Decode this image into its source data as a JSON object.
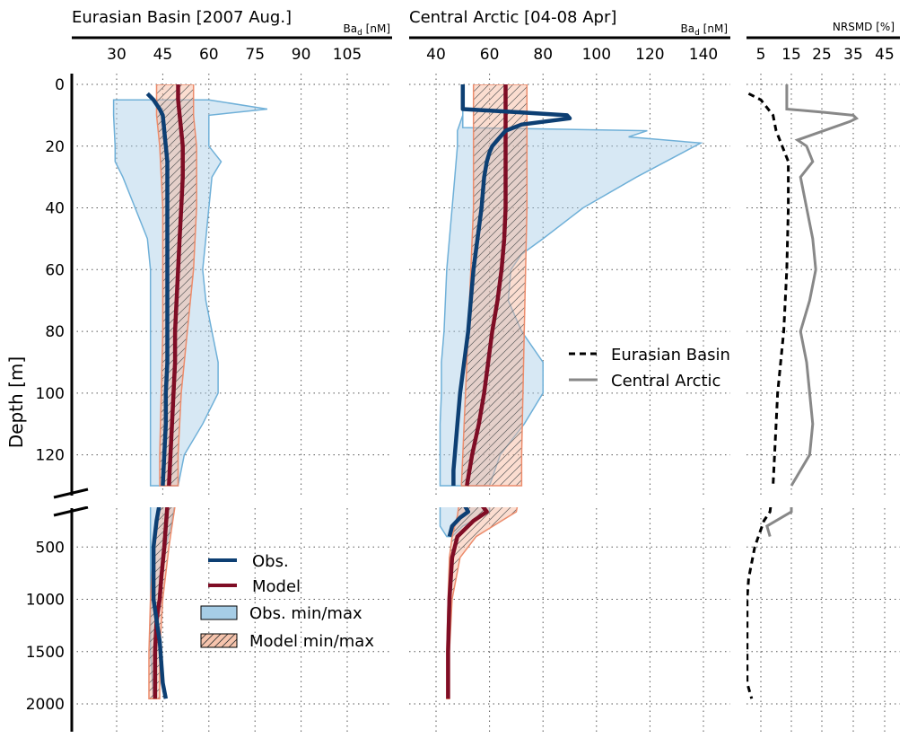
{
  "panels": {
    "eurasian": {
      "title": "Eurasian Basin [2007 Aug.]",
      "unit_main": "Ba",
      "unit_sub": "d",
      "unit_tail": " [nM]"
    },
    "central": {
      "title": "Central Arctic [04-08 Apr]",
      "unit_main": "Ba",
      "unit_sub": "d",
      "unit_tail": " [nM]"
    },
    "nrsmd": {
      "title": "",
      "unit_main": "NRSMD [%]",
      "unit_sub": "",
      "unit_tail": ""
    }
  },
  "y_axis": {
    "label": "Depth [m]"
  },
  "legend_left": {
    "obs": "Obs.",
    "model": "Model",
    "obs_range": "Obs. min/max",
    "model_range": "Model min/max"
  },
  "legend_right": {
    "eurasian": "Eurasian  Basin",
    "central": "Central Arctic"
  },
  "colors": {
    "obs": "#0d3f73",
    "model": "#7f0d25",
    "obs_fill": "#a6cde6",
    "obs_edge": "#6fb0d8",
    "model_fill": "#f6c4ad",
    "model_edge": "#ec8c6c",
    "nrsmd_eurasian": "#000000",
    "nrsmd_central": "#888888"
  },
  "chart_data": [
    {
      "type": "line",
      "panel": "eurasian",
      "xticks": [
        30,
        45,
        60,
        75,
        90,
        105
      ],
      "xlim": [
        15,
        120
      ],
      "depth_axis": {
        "upper": {
          "range": [
            0,
            130
          ],
          "ticks": [
            0,
            20,
            40,
            60,
            80,
            100,
            120
          ]
        },
        "lower": {
          "range": [
            130,
            2000
          ],
          "ticks": [
            500,
            1000,
            1500,
            2000
          ]
        }
      },
      "obs": {
        "depth": [
          3,
          5,
          8,
          10,
          15,
          20,
          25,
          30,
          40,
          50,
          60,
          70,
          80,
          90,
          100,
          110,
          120,
          130,
          250,
          500,
          800,
          1000,
          1200,
          1400,
          1600,
          1800,
          1950
        ],
        "value": [
          40,
          42,
          44,
          45,
          45.5,
          46,
          46.5,
          46.5,
          46.5,
          46.5,
          46.5,
          46.5,
          46.5,
          46.5,
          46,
          46,
          45.5,
          45,
          43,
          42,
          42,
          42,
          43,
          44,
          44.5,
          45,
          46
        ]
      },
      "model": {
        "depth": [
          0,
          5,
          10,
          15,
          20,
          30,
          40,
          50,
          60,
          70,
          80,
          90,
          100,
          110,
          120,
          130,
          300,
          500,
          800,
          1000,
          1200,
          1500,
          1800,
          1950
        ],
        "value": [
          50,
          50,
          50.5,
          51,
          51.5,
          51.5,
          51,
          50.5,
          50,
          49.5,
          49,
          49,
          48.5,
          48,
          47.5,
          47,
          46,
          45.5,
          44.5,
          44,
          43,
          42.5,
          42.5,
          42.5
        ]
      },
      "obs_min": {
        "depth": [
          5,
          10,
          20,
          25,
          30,
          40,
          50,
          60,
          70,
          80,
          90,
          100,
          110,
          120,
          130,
          250,
          500,
          1000,
          1500,
          1950
        ],
        "value": [
          29,
          29,
          29.5,
          29.5,
          32,
          36,
          40,
          41,
          41,
          41,
          41,
          41,
          41,
          41,
          41,
          41,
          41,
          41,
          41,
          42
        ]
      },
      "obs_max": {
        "depth": [
          5,
          8,
          10,
          20,
          25,
          30,
          40,
          50,
          60,
          70,
          80,
          90,
          100,
          110,
          120,
          130,
          250,
          500,
          1000,
          1500,
          1950
        ],
        "value": [
          60,
          79,
          60,
          60,
          64,
          61,
          60,
          59,
          58,
          59,
          61,
          63,
          63,
          58,
          52,
          50,
          48,
          46,
          44,
          43,
          43
        ]
      },
      "model_min": {
        "depth": [
          0,
          5,
          10,
          20,
          40,
          60,
          80,
          100,
          120,
          130,
          300,
          500,
          1000,
          1500,
          1950
        ],
        "value": [
          43,
          43,
          43,
          44,
          45,
          45,
          45,
          44.5,
          44,
          44,
          43,
          42,
          41,
          40.5,
          40.5
        ]
      },
      "model_max": {
        "depth": [
          0,
          5,
          10,
          20,
          40,
          60,
          80,
          100,
          120,
          130,
          300,
          500,
          1000,
          1500,
          1950
        ],
        "value": [
          55,
          55,
          55,
          56,
          56,
          55,
          53,
          51,
          50,
          50,
          48,
          47,
          45,
          44,
          44
        ]
      }
    },
    {
      "type": "line",
      "panel": "central",
      "xticks": [
        40,
        60,
        80,
        100,
        120,
        140
      ],
      "xlim": [
        30,
        150
      ],
      "obs": {
        "depth": [
          0,
          5,
          8,
          9,
          10,
          11,
          13,
          15,
          18,
          20,
          22,
          25,
          30,
          40,
          50,
          60,
          70,
          80,
          90,
          100,
          110,
          120,
          125,
          130,
          160,
          220,
          300,
          400
        ],
        "value": [
          50,
          50,
          50,
          70,
          89,
          90,
          72,
          66,
          63,
          61,
          60,
          59,
          58,
          57,
          55.5,
          54,
          53,
          52,
          50.5,
          49,
          48,
          47,
          46.5,
          46.5,
          52,
          49,
          46,
          45
        ]
      },
      "model": {
        "depth": [
          0,
          10,
          20,
          30,
          40,
          50,
          60,
          70,
          80,
          90,
          100,
          110,
          120,
          130,
          160,
          250,
          400,
          600,
          1000,
          1500,
          1950
        ],
        "value": [
          66,
          66,
          66,
          66,
          66,
          65.5,
          64.5,
          63,
          61,
          59.5,
          58,
          56,
          53.5,
          51.5,
          59,
          54,
          48,
          46,
          45,
          44.5,
          44.5
        ]
      },
      "obs_min": {
        "depth": [
          0,
          10,
          15,
          20,
          30,
          40,
          60,
          80,
          90,
          100,
          110,
          120,
          130,
          160,
          300,
          400
        ],
        "value": [
          50,
          50,
          48,
          48,
          47,
          46,
          44,
          43,
          42,
          42,
          41.5,
          41.5,
          41.5,
          41.5,
          41.5,
          44
        ]
      },
      "obs_max": {
        "depth": [
          0,
          5,
          8,
          10,
          14,
          15,
          17,
          19,
          30,
          40,
          50,
          55,
          60,
          70,
          80,
          90,
          100,
          110,
          120,
          130,
          160,
          300,
          400
        ],
        "value": [
          50,
          50,
          50,
          50,
          50,
          119,
          112,
          139,
          115,
          95,
          80,
          72,
          68,
          67,
          72,
          80,
          80,
          73,
          64,
          60,
          60,
          50,
          46
        ]
      },
      "model_min": {
        "depth": [
          0,
          40,
          80,
          120,
          130,
          200,
          400,
          600,
          1000,
          1500,
          1950
        ],
        "value": [
          54,
          54,
          52,
          50,
          49.5,
          48,
          46,
          45,
          44.5,
          44,
          44
        ]
      },
      "model_max": {
        "depth": [
          0,
          40,
          80,
          120,
          130,
          160,
          400,
          600,
          1000,
          1500,
          1950
        ],
        "value": [
          74,
          74,
          73,
          72,
          72,
          70,
          55,
          49,
          46,
          45,
          45
        ]
      }
    },
    {
      "type": "line",
      "panel": "nrsmd",
      "xticks": [
        5,
        15,
        25,
        35,
        45
      ],
      "xlim": [
        0,
        50
      ],
      "series": [
        {
          "name": "Eurasian  Basin",
          "depth": [
            3,
            5,
            10,
            15,
            25,
            40,
            60,
            80,
            100,
            120,
            130,
            160,
            250,
            500,
            800,
            1000,
            1400,
            1800,
            1950
          ],
          "value": [
            1,
            5,
            9,
            10,
            14,
            14,
            13.5,
            12.5,
            10.5,
            9.5,
            9,
            8,
            6,
            3,
            1,
            0.5,
            0.5,
            0.5,
            2
          ]
        },
        {
          "name": "Central Arctic",
          "depth": [
            0,
            8,
            9,
            10,
            11,
            12,
            18,
            20,
            25,
            30,
            40,
            50,
            60,
            70,
            80,
            90,
            100,
            110,
            120,
            130,
            160,
            300,
            400
          ],
          "value": [
            13.5,
            13.5,
            25,
            35,
            36,
            34,
            17,
            20,
            22,
            18,
            20,
            22,
            23,
            21,
            18,
            20,
            21,
            22,
            21,
            15,
            15,
            7,
            8
          ]
        }
      ]
    }
  ]
}
